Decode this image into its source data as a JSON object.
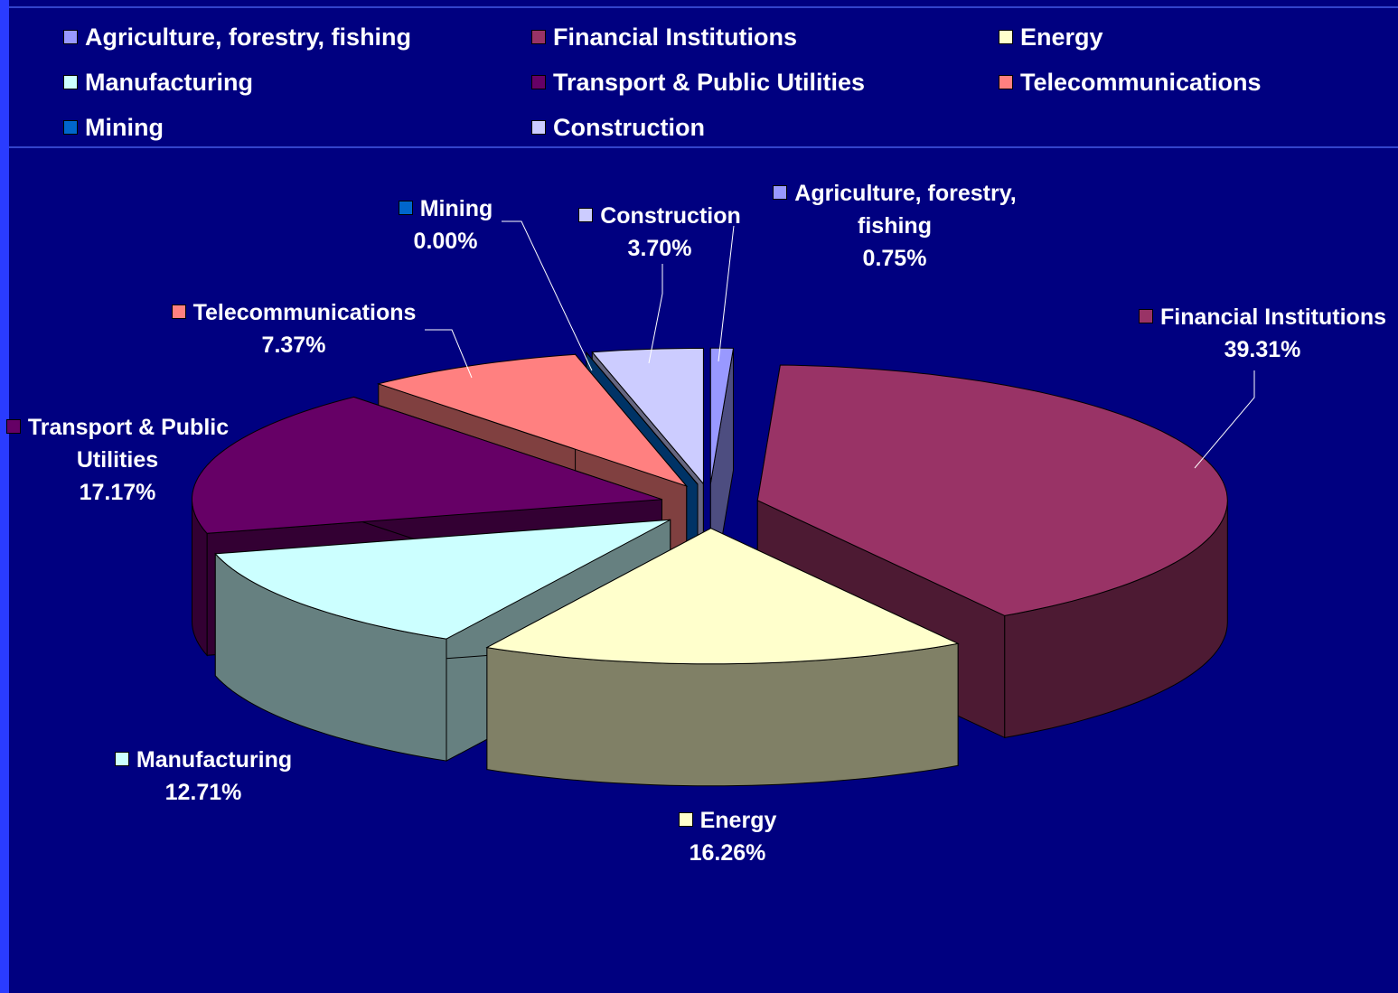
{
  "chart_data": {
    "type": "pie3d",
    "categories": [
      "Agriculture, forestry, fishing",
      "Financial Institutions",
      "Energy",
      "Manufacturing",
      "Transport & Public Utilities",
      "Telecommunications",
      "Mining",
      "Construction"
    ],
    "values": [
      0.75,
      39.31,
      16.26,
      12.71,
      17.17,
      7.37,
      0.0,
      3.7
    ],
    "value_labels": [
      "0.75%",
      "39.31%",
      "16.26%",
      "12.71%",
      "17.17%",
      "7.37%",
      "0.00%",
      "3.70%"
    ],
    "colors": [
      "#9999ff",
      "#993366",
      "#ffffcc",
      "#ccffff",
      "#660066",
      "#ff8080",
      "#0066cc",
      "#ccccff"
    ],
    "legend": "top"
  }
}
